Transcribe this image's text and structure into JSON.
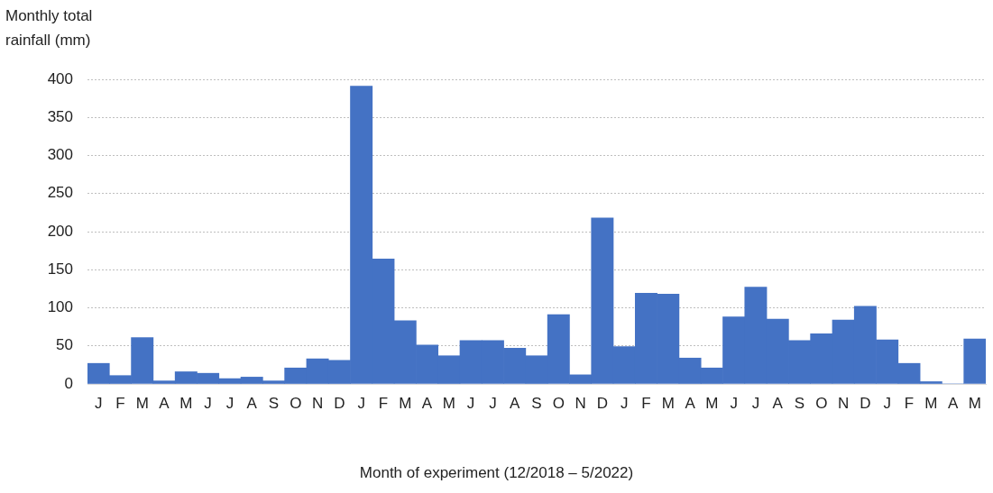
{
  "chart_data": {
    "type": "bar",
    "ylabel": "Monthly total rainfall (mm)",
    "xlabel": "Month of experiment (12/2018 – 5/2022)",
    "categories": [
      "J",
      "F",
      "M",
      "A",
      "M",
      "J",
      "J",
      "A",
      "S",
      "O",
      "N",
      "D",
      "J",
      "F",
      "M",
      "A",
      "M",
      "J",
      "J",
      "A",
      "S",
      "O",
      "N",
      "D",
      "J",
      "F",
      "M",
      "A",
      "M",
      "J",
      "J",
      "A",
      "S",
      "O",
      "N",
      "D",
      "J",
      "F",
      "M",
      "A",
      "M"
    ],
    "values": [
      27,
      11,
      61,
      4,
      16,
      14,
      7,
      9,
      4,
      21,
      33,
      31,
      391,
      164,
      83,
      51,
      37,
      57,
      57,
      47,
      37,
      91,
      12,
      218,
      49,
      119,
      118,
      34,
      21,
      88,
      127,
      85,
      57,
      66,
      84,
      102,
      58,
      27,
      3,
      0,
      59
    ],
    "color": "#4472c4",
    "ylim": [
      0,
      400
    ],
    "yticks": [
      0,
      50,
      100,
      150,
      200,
      250,
      300,
      350,
      400
    ],
    "grid": "y",
    "legend": false
  }
}
